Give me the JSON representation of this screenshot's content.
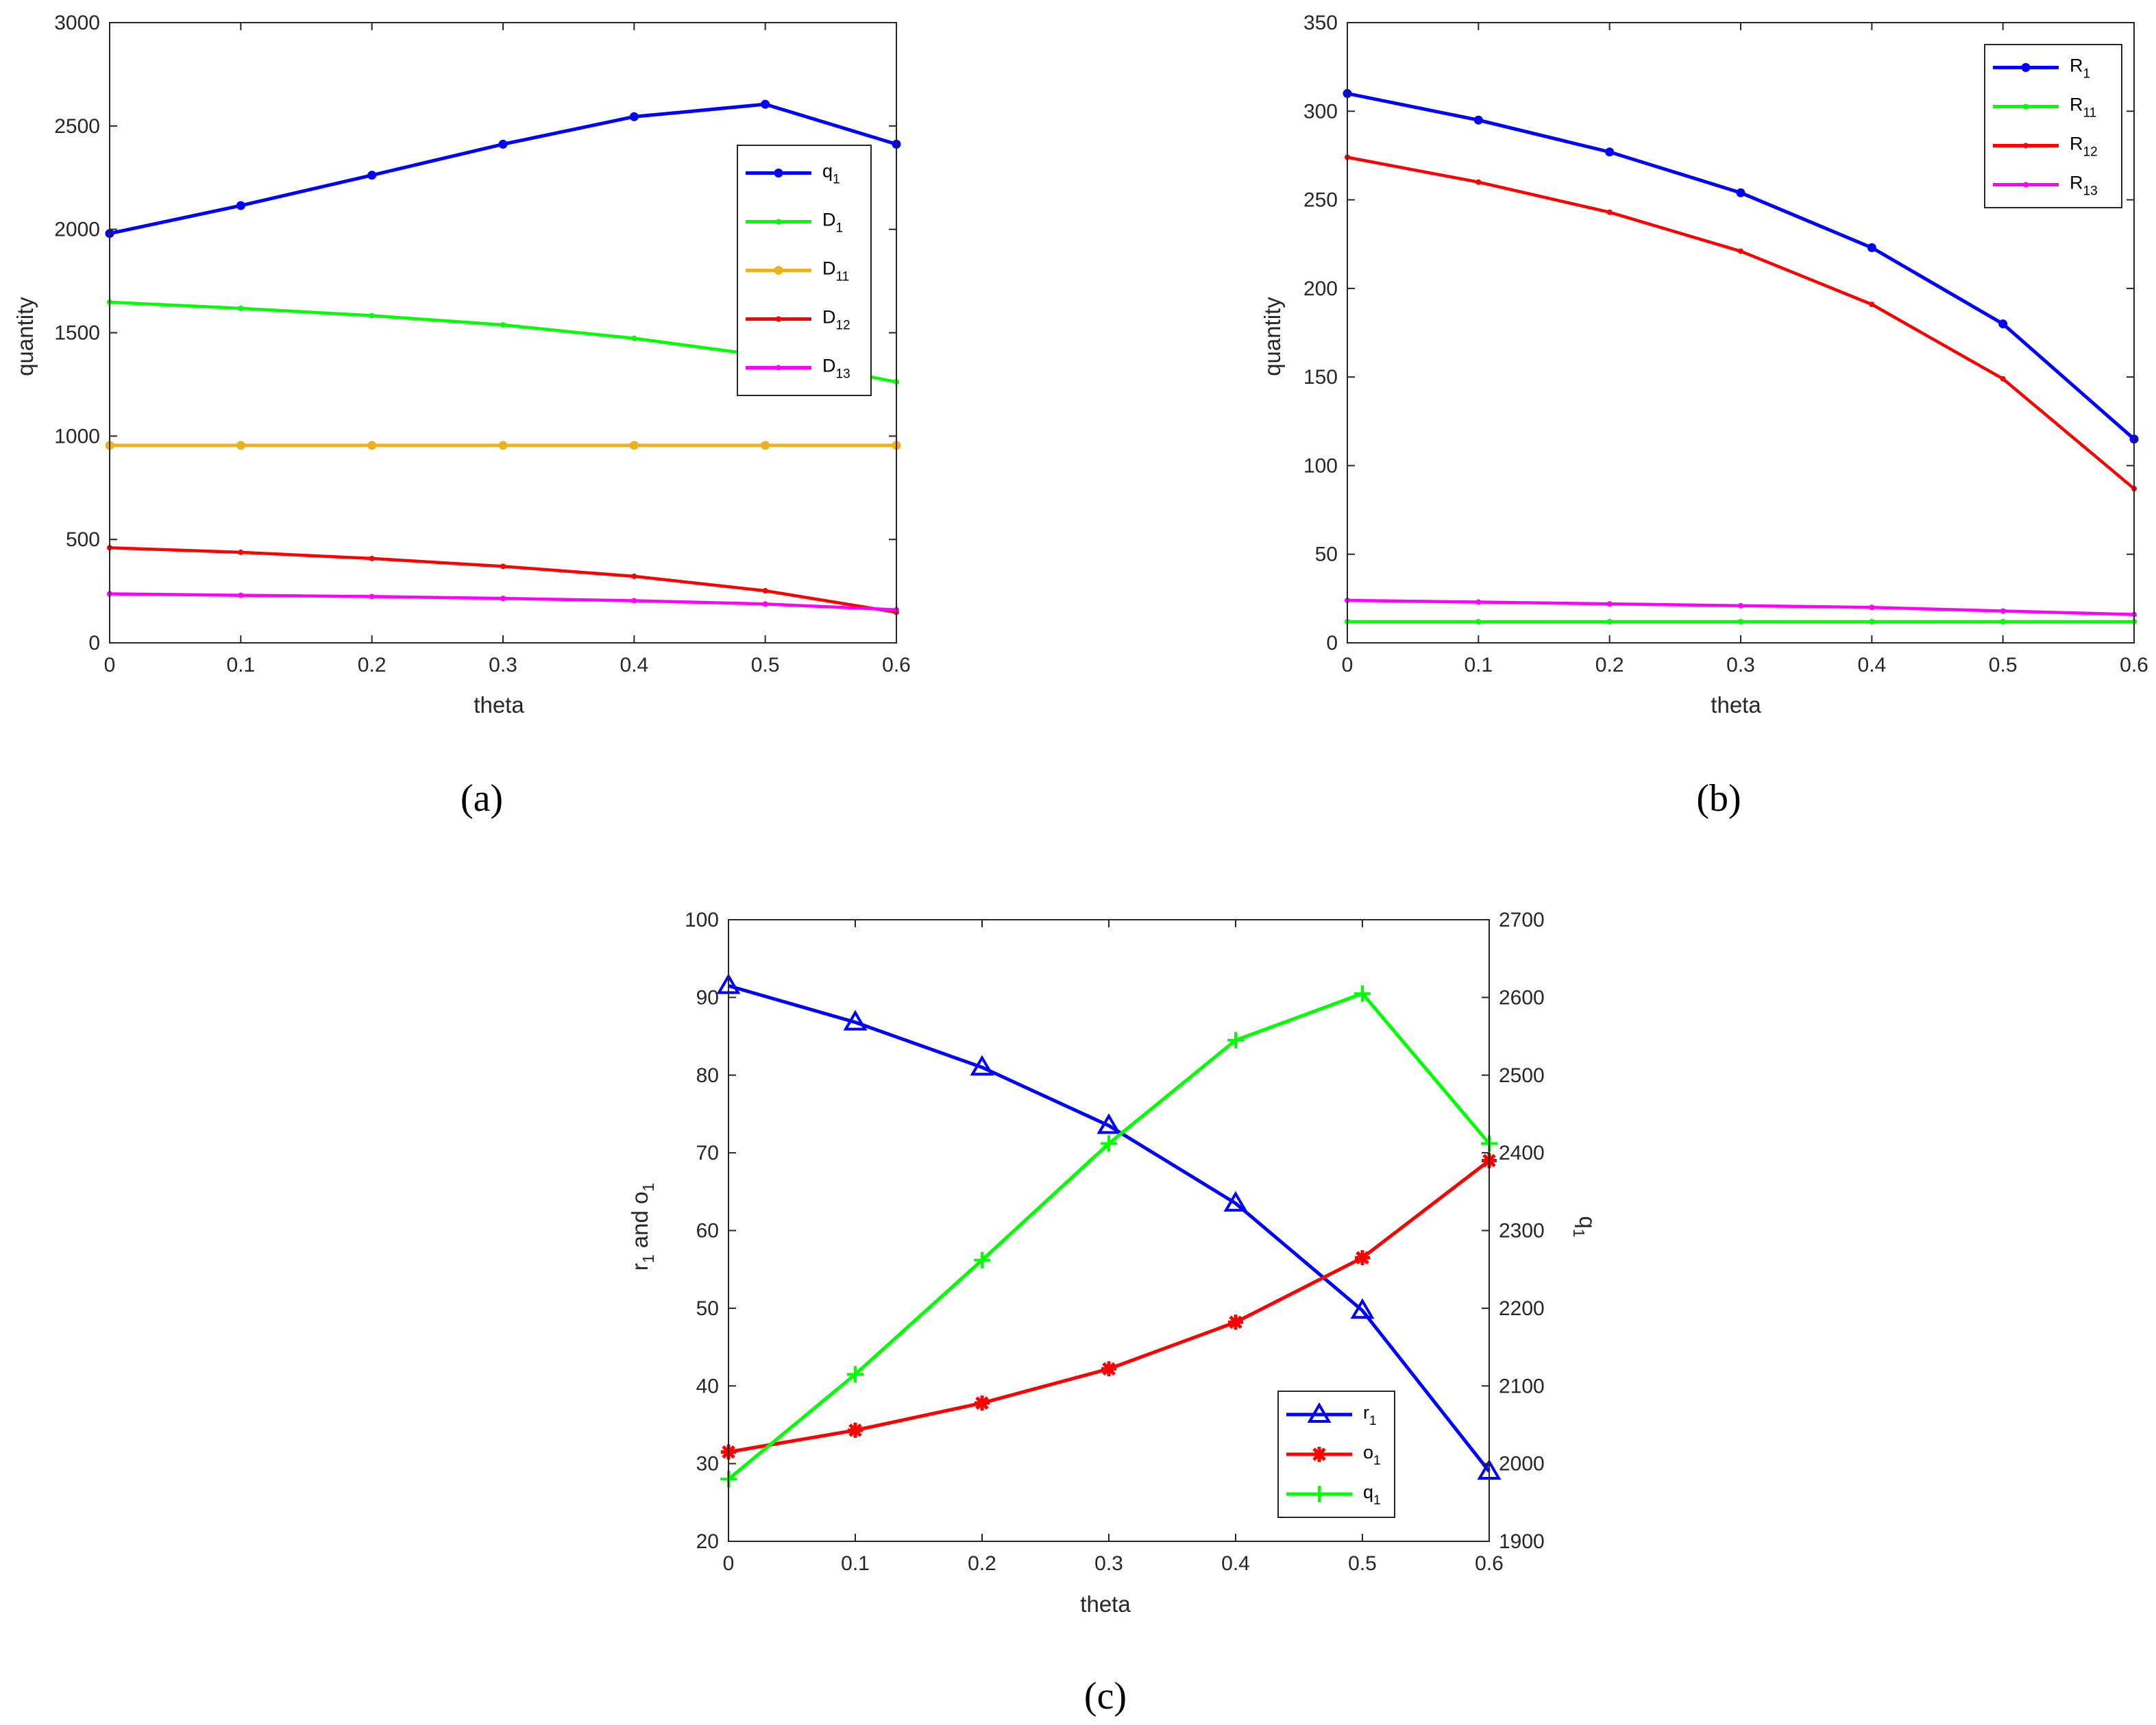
{
  "colors": {
    "blue": "#0000ff",
    "green": "#00ff00",
    "orange": "#edb120",
    "red": "#ff0000",
    "magenta": "#ff00ff",
    "left_axis": "#0072bd",
    "right_axis": "#d95319",
    "axis": "#262626"
  },
  "chart_data": [
    {
      "type": "line",
      "panel_label": "(a)",
      "xlabel": "theta",
      "ylabel": "quantity",
      "xlim": [
        0,
        0.6
      ],
      "ylim": [
        0,
        3000
      ],
      "xticks": [
        "0",
        "0.1",
        "0.2",
        "0.3",
        "0.4",
        "0.5",
        "0.6"
      ],
      "yticks": [
        "0",
        "500",
        "1000",
        "1500",
        "2000",
        "2500",
        "3000"
      ],
      "x": [
        0,
        0.1,
        0.2,
        0.3,
        0.4,
        0.5,
        0.6
      ],
      "legend_position": "right",
      "series": [
        {
          "name": "q",
          "sub": "1",
          "color_key": "blue",
          "marker": "dot-large",
          "values": [
            1980,
            2115,
            2262,
            2412,
            2545,
            2605,
            2412
          ]
        },
        {
          "name": "D",
          "sub": "1",
          "color_key": "green",
          "marker": "dot-small",
          "values": [
            1648,
            1618,
            1583,
            1538,
            1473,
            1388,
            1262
          ]
        },
        {
          "name": "D",
          "sub": "11",
          "color_key": "orange",
          "marker": "dot-large",
          "values": [
            955,
            955,
            955,
            955,
            955,
            955,
            955
          ]
        },
        {
          "name": "D",
          "sub": "12",
          "color_key": "red",
          "marker": "dot-small",
          "values": [
            460,
            438,
            408,
            370,
            322,
            252,
            148
          ]
        },
        {
          "name": "D",
          "sub": "13",
          "color_key": "magenta",
          "marker": "dot-small",
          "values": [
            237,
            230,
            224,
            215,
            204,
            188,
            160
          ]
        }
      ]
    },
    {
      "type": "line",
      "panel_label": "(b)",
      "xlabel": "theta",
      "ylabel": "quantity",
      "xlim": [
        0,
        0.6
      ],
      "ylim": [
        0,
        350
      ],
      "xticks": [
        "0",
        "0.1",
        "0.2",
        "0.3",
        "0.4",
        "0.5",
        "0.6"
      ],
      "yticks": [
        "0",
        "50",
        "100",
        "150",
        "200",
        "250",
        "300",
        "350"
      ],
      "x": [
        0,
        0.1,
        0.2,
        0.3,
        0.4,
        0.5,
        0.6
      ],
      "legend_position": "top-right",
      "series": [
        {
          "name": "R",
          "sub": "1",
          "color_key": "blue",
          "marker": "dot-large",
          "values": [
            310,
            295,
            277,
            254,
            223,
            180,
            115
          ]
        },
        {
          "name": "R",
          "sub": "11",
          "color_key": "green",
          "marker": "dot-small",
          "values": [
            12,
            12,
            12,
            12,
            12,
            12,
            12
          ]
        },
        {
          "name": "R",
          "sub": "12",
          "color_key": "red",
          "marker": "dot-small",
          "values": [
            274,
            260,
            243,
            221,
            191,
            149,
            87
          ]
        },
        {
          "name": "R",
          "sub": "13",
          "color_key": "magenta",
          "marker": "dot-small",
          "values": [
            24,
            23,
            22,
            21,
            20,
            18,
            16
          ]
        }
      ]
    },
    {
      "type": "line",
      "panel_label": "(c)",
      "xlabel": "theta",
      "ylabel_left": {
        "a": "r",
        "a_sub": "1",
        "mid": " and o",
        "b_sub": "1"
      },
      "ylabel_right": {
        "a": "q",
        "a_sub": "1"
      },
      "xlim": [
        0,
        0.6
      ],
      "ylim_left": [
        20,
        100
      ],
      "ylim_right": [
        1900,
        2700
      ],
      "xticks": [
        "0",
        "0.1",
        "0.2",
        "0.3",
        "0.4",
        "0.5",
        "0.6"
      ],
      "yticks_left": [
        "20",
        "30",
        "40",
        "50",
        "60",
        "70",
        "80",
        "90",
        "100"
      ],
      "yticks_right": [
        "1900",
        "2000",
        "2100",
        "2200",
        "2300",
        "2400",
        "2500",
        "2600",
        "2700"
      ],
      "x": [
        0,
        0.1,
        0.2,
        0.3,
        0.4,
        0.5,
        0.6
      ],
      "legend_position": "bottom-right",
      "series": [
        {
          "name": "r",
          "sub": "1",
          "axis": "left",
          "color_key": "blue",
          "marker": "triangle",
          "values": [
            91.5,
            86.8,
            81,
            73.5,
            63.5,
            49.7,
            29
          ]
        },
        {
          "name": "o",
          "sub": "1",
          "axis": "left",
          "color_key": "red",
          "marker": "asterisk",
          "values": [
            31.5,
            34.3,
            37.8,
            42.2,
            48.2,
            56.5,
            69
          ]
        },
        {
          "name": "q",
          "sub": "1",
          "axis": "right",
          "color_key": "green",
          "marker": "plus",
          "values": [
            1980,
            2115,
            2262,
            2412,
            2545,
            2605,
            2412
          ]
        }
      ]
    }
  ]
}
